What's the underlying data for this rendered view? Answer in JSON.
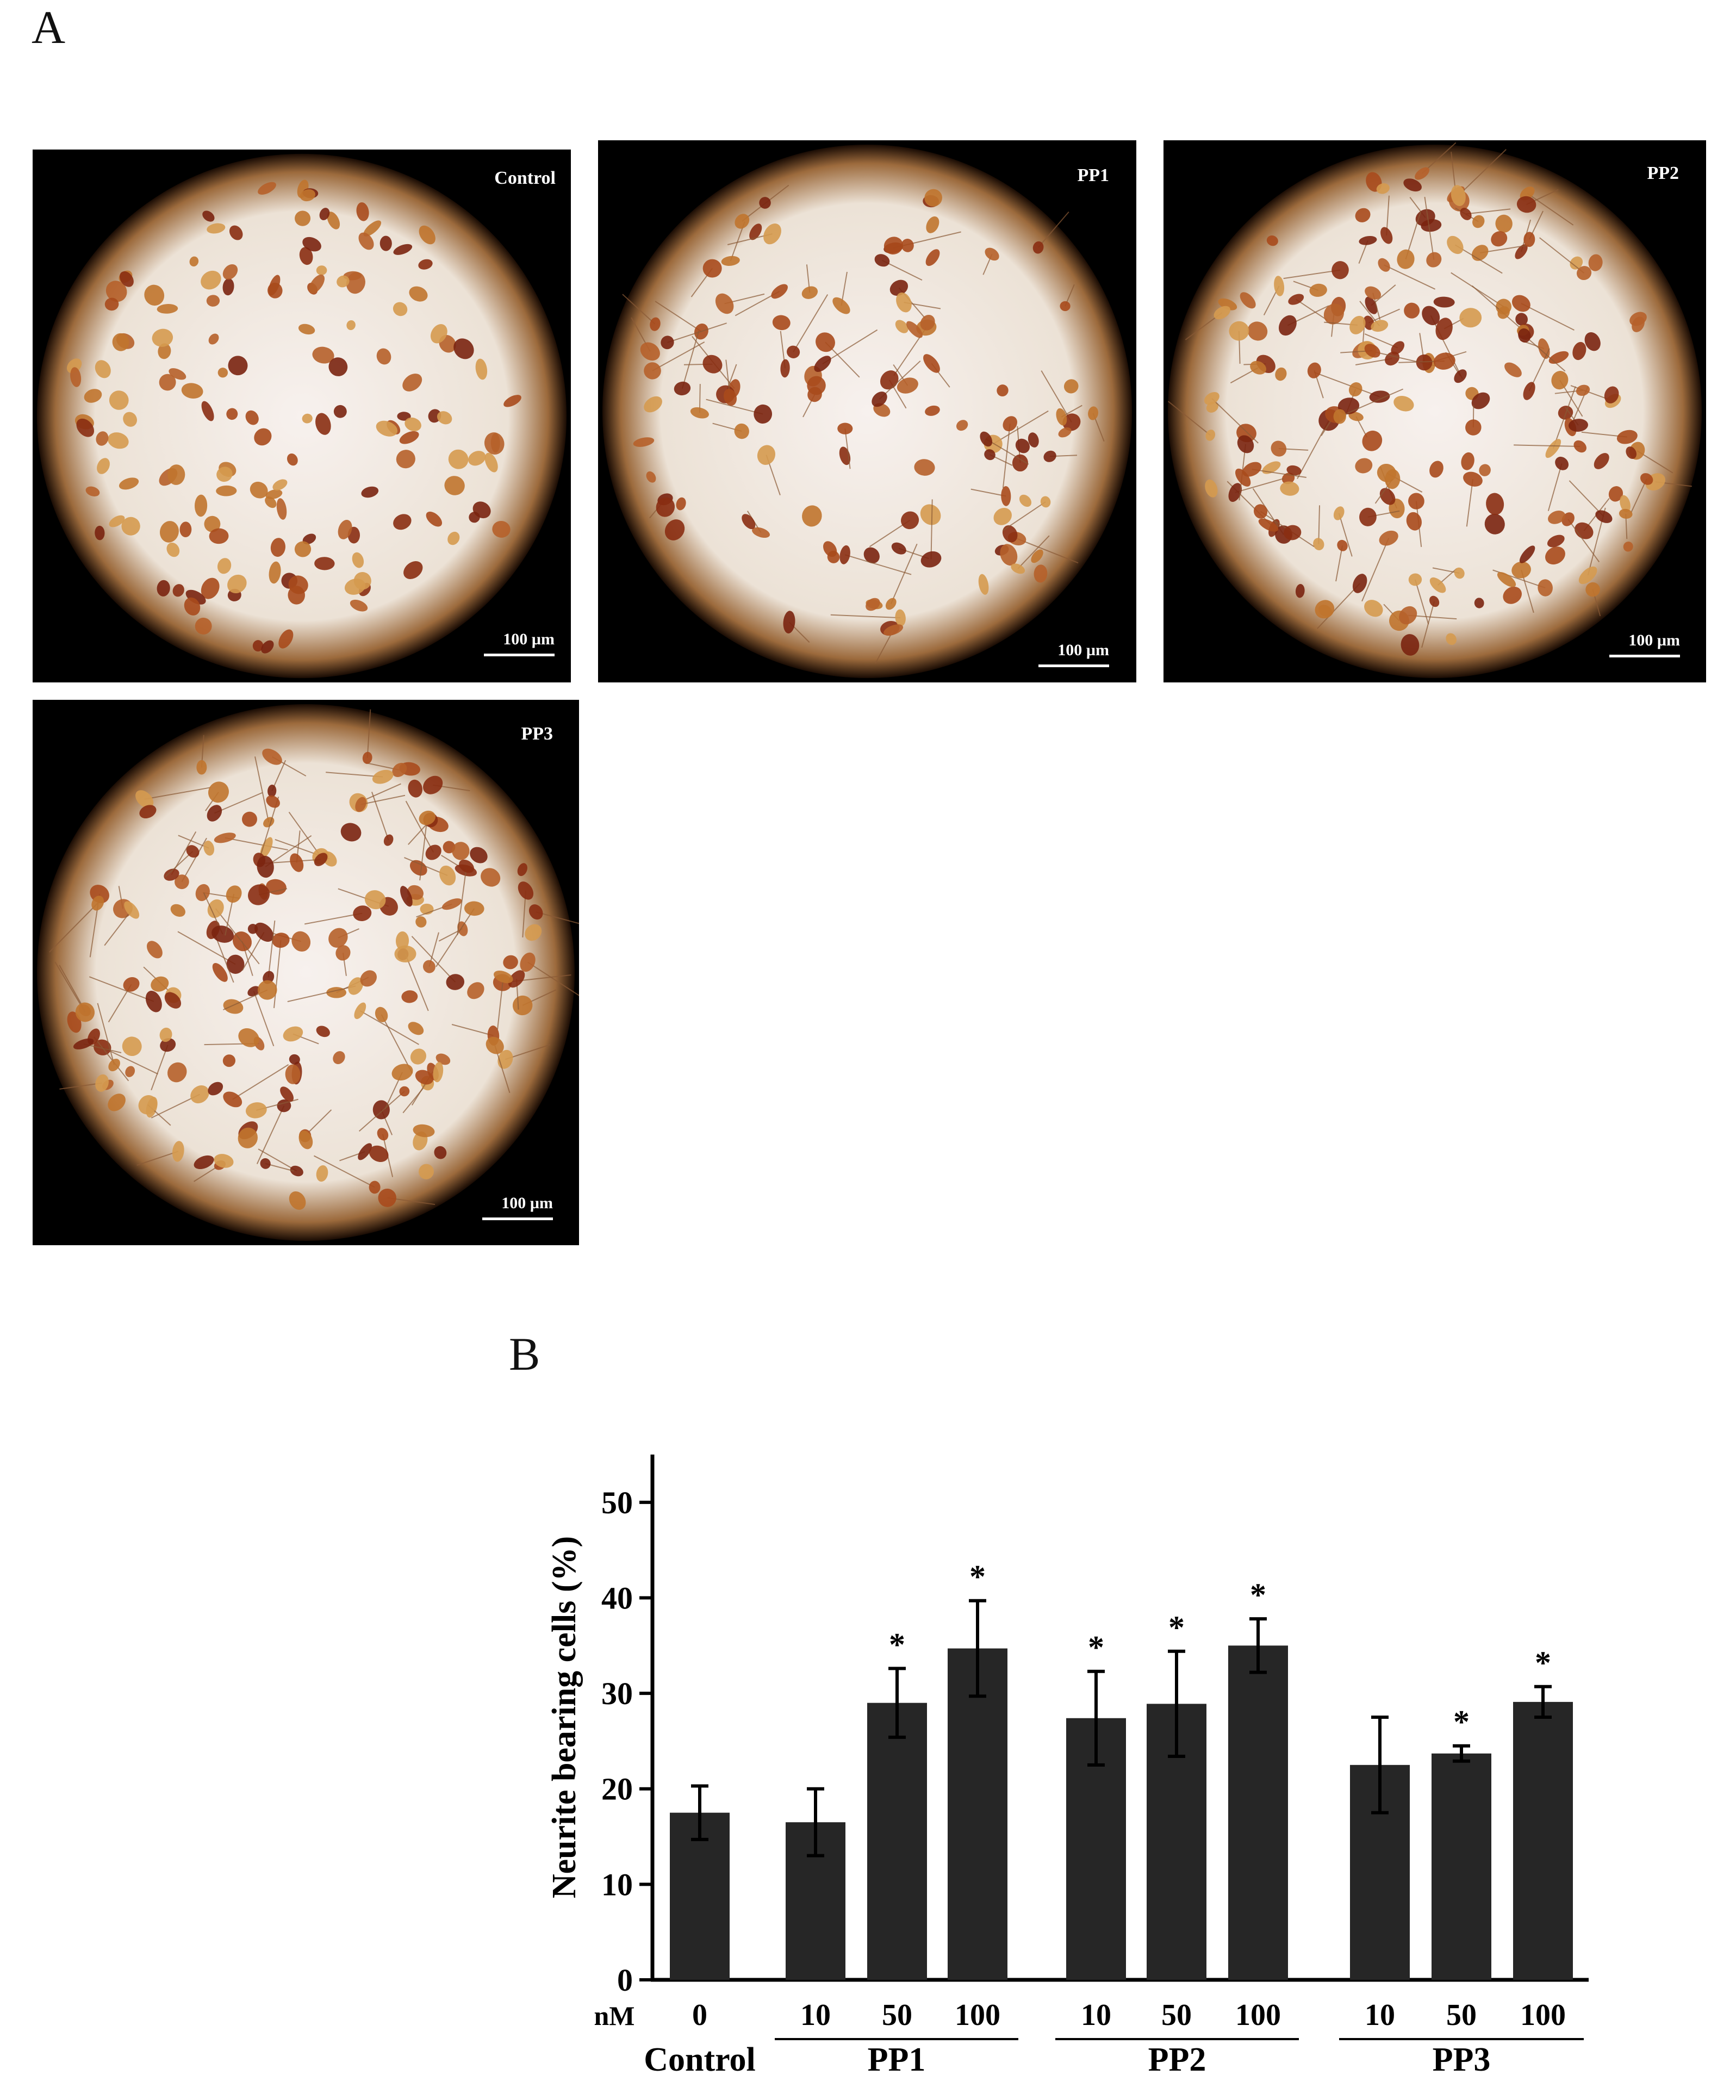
{
  "panel_a": {
    "letter": "A",
    "images": [
      {
        "label": "Control",
        "scale_bar": "100 µm"
      },
      {
        "label": "PP1",
        "scale_bar": "100 µm"
      },
      {
        "label": "PP2",
        "scale_bar": "100 µm"
      },
      {
        "label": "PP3",
        "scale_bar": "100 µm"
      }
    ]
  },
  "panel_b": {
    "letter": "B"
  },
  "chart_data": {
    "type": "bar",
    "ylabel": "Neurite bearing cells  (%)",
    "ylim": [
      0,
      55
    ],
    "yticks": [
      0,
      10,
      20,
      30,
      40,
      50
    ],
    "x_unit_label": "nM",
    "bar_color": "#262626",
    "groups": [
      {
        "name": "Control",
        "underline": false,
        "bars": [
          {
            "dose": "0",
            "value": 17.5,
            "error": 2.8,
            "significant": false
          }
        ]
      },
      {
        "name": "PP1",
        "underline": true,
        "bars": [
          {
            "dose": "10",
            "value": 16.5,
            "error": 3.5,
            "significant": false
          },
          {
            "dose": "50",
            "value": 29.0,
            "error": 3.6,
            "significant": true
          },
          {
            "dose": "100",
            "value": 34.7,
            "error": 5.0,
            "significant": true
          }
        ]
      },
      {
        "name": "PP2",
        "underline": true,
        "bars": [
          {
            "dose": "10",
            "value": 27.4,
            "error": 4.9,
            "significant": true
          },
          {
            "dose": "50",
            "value": 28.9,
            "error": 5.5,
            "significant": true
          },
          {
            "dose": "100",
            "value": 35.0,
            "error": 2.8,
            "significant": true
          }
        ]
      },
      {
        "name": "PP3",
        "underline": true,
        "bars": [
          {
            "dose": "10",
            "value": 22.5,
            "error": 5.0,
            "significant": false
          },
          {
            "dose": "50",
            "value": 23.7,
            "error": 0.8,
            "significant": true
          },
          {
            "dose": "100",
            "value": 29.1,
            "error": 1.6,
            "significant": true
          }
        ]
      }
    ],
    "significance_marker": "*"
  }
}
